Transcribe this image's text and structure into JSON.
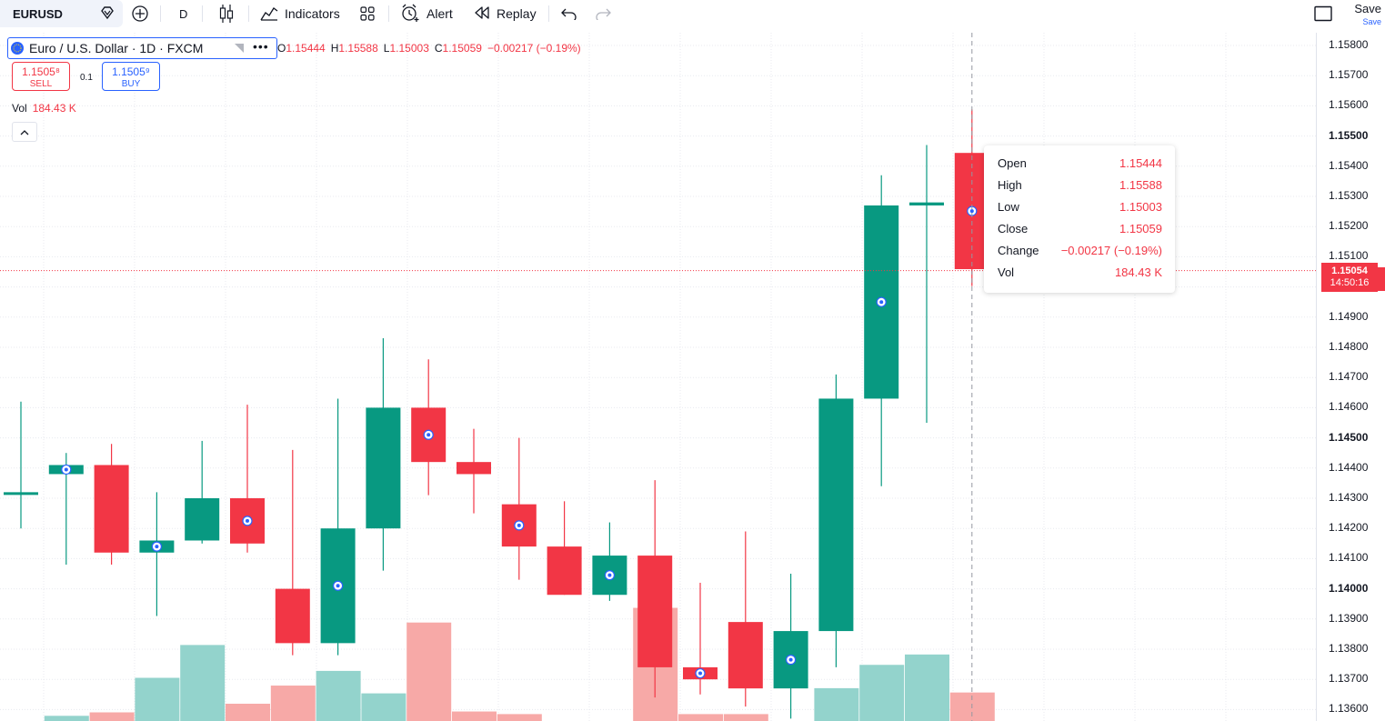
{
  "toolbar": {
    "symbol": "EURUSD",
    "interval": "D",
    "indicators_label": "Indicators",
    "alert_label": "Alert",
    "replay_label": "Replay",
    "save_label": "Save",
    "save_sub": "Save"
  },
  "legend": {
    "title": "Euro / U.S. Dollar · 1D · FXCM",
    "open_key": "O",
    "open": "1.15444",
    "high_key": "H",
    "high": "1.15588",
    "low_key": "L",
    "low": "1.15003",
    "close_key": "C",
    "close": "1.15059",
    "change": "−0.00217 (−0.19%)",
    "sell_price": "1.1505⁸",
    "sell_label": "SELL",
    "qty": "0.1",
    "buy_price": "1.1505⁹",
    "buy_label": "BUY",
    "vol_label": "Vol",
    "vol_value": "184.43 K"
  },
  "tooltip": {
    "rows": [
      {
        "label": "Open",
        "value": "1.15444"
      },
      {
        "label": "High",
        "value": "1.15588"
      },
      {
        "label": "Low",
        "value": "1.15003"
      },
      {
        "label": "Close",
        "value": "1.15059"
      },
      {
        "label": "Change",
        "value": "−0.00217 (−0.19%)"
      },
      {
        "label": "Vol",
        "value": "184.43 K"
      }
    ]
  },
  "price_axis": {
    "ticks": [
      "1.15800",
      "1.15700",
      "1.15600",
      "1.15500",
      "1.15400",
      "1.15300",
      "1.15200",
      "1.15100",
      "1.15000",
      "1.14900",
      "1.14800",
      "1.14700",
      "1.14600",
      "1.14500",
      "1.14400",
      "1.14300",
      "1.14200",
      "1.14100",
      "1.14000",
      "1.13900",
      "1.13800",
      "1.13700",
      "1.13600"
    ],
    "last_price": "1.15054",
    "countdown": "14:50:16"
  },
  "colors": {
    "up": "#089981",
    "down": "#f23645",
    "up_vol": "#93d3cc",
    "down_vol": "#f7a9a7",
    "accent": "#2962ff"
  },
  "chart_data": {
    "type": "candlestick",
    "symbol": "EURUSD",
    "price_range": [
      1.1355,
      1.1585
    ],
    "candles": [
      {
        "o": 1.1432,
        "h": 1.1462,
        "l": 1.142,
        "c": 1.1432,
        "vol": 0,
        "marker": false
      },
      {
        "o": 1.1438,
        "h": 1.1445,
        "l": 1.1408,
        "c": 1.1441,
        "vol": 0.6,
        "marker": true
      },
      {
        "o": 1.1441,
        "h": 1.1448,
        "l": 1.1408,
        "c": 1.1412,
        "vol": 1.0,
        "marker": false
      },
      {
        "o": 1.1412,
        "h": 1.1432,
        "l": 1.1391,
        "c": 1.1416,
        "vol": 5.0,
        "marker": true
      },
      {
        "o": 1.1416,
        "h": 1.1449,
        "l": 1.1415,
        "c": 1.143,
        "vol": 8.8,
        "marker": false
      },
      {
        "o": 1.143,
        "h": 1.1461,
        "l": 1.1412,
        "c": 1.1415,
        "vol": 2.0,
        "marker": true
      },
      {
        "o": 1.14,
        "h": 1.1446,
        "l": 1.1378,
        "c": 1.1382,
        "vol": 4.1,
        "marker": false
      },
      {
        "o": 1.1382,
        "h": 1.1463,
        "l": 1.1378,
        "c": 1.142,
        "vol": 5.8,
        "marker": true
      },
      {
        "o": 1.142,
        "h": 1.1483,
        "l": 1.1406,
        "c": 1.146,
        "vol": 3.2,
        "marker": false
      },
      {
        "o": 1.146,
        "h": 1.1476,
        "l": 1.1431,
        "c": 1.1442,
        "vol": 11.4,
        "marker": true
      },
      {
        "o": 1.1442,
        "h": 1.1453,
        "l": 1.1425,
        "c": 1.1438,
        "vol": 1.1,
        "marker": false
      },
      {
        "o": 1.1428,
        "h": 1.145,
        "l": 1.1403,
        "c": 1.1414,
        "vol": 0.8,
        "marker": true
      },
      {
        "o": 1.1414,
        "h": 1.1429,
        "l": 1.1398,
        "c": 1.1398,
        "vol": 0,
        "marker": false
      },
      {
        "o": 1.1398,
        "h": 1.1422,
        "l": 1.1396,
        "c": 1.1411,
        "vol": 0,
        "marker": true
      },
      {
        "o": 1.1411,
        "h": 1.1436,
        "l": 1.1364,
        "c": 1.1374,
        "vol": 13.1,
        "marker": false
      },
      {
        "o": 1.1374,
        "h": 1.1402,
        "l": 1.1365,
        "c": 1.137,
        "vol": 0.8,
        "marker": true
      },
      {
        "o": 1.1389,
        "h": 1.1419,
        "l": 1.1361,
        "c": 1.1367,
        "vol": 0.8,
        "marker": false
      },
      {
        "o": 1.1367,
        "h": 1.1405,
        "l": 1.1357,
        "c": 1.1386,
        "vol": 0,
        "marker": true
      },
      {
        "o": 1.1386,
        "h": 1.1471,
        "l": 1.1374,
        "c": 1.1463,
        "vol": 3.8,
        "marker": false
      },
      {
        "o": 1.1463,
        "h": 1.1537,
        "l": 1.1434,
        "c": 1.1527,
        "vol": 6.5,
        "marker": true
      },
      {
        "o": 1.1527,
        "h": 1.1547,
        "l": 1.1455,
        "c": 1.1528,
        "vol": 7.7,
        "marker": false
      },
      {
        "o": 1.15444,
        "h": 1.15588,
        "l": 1.15003,
        "c": 1.15059,
        "vol": 3.3,
        "marker": true
      }
    ]
  }
}
